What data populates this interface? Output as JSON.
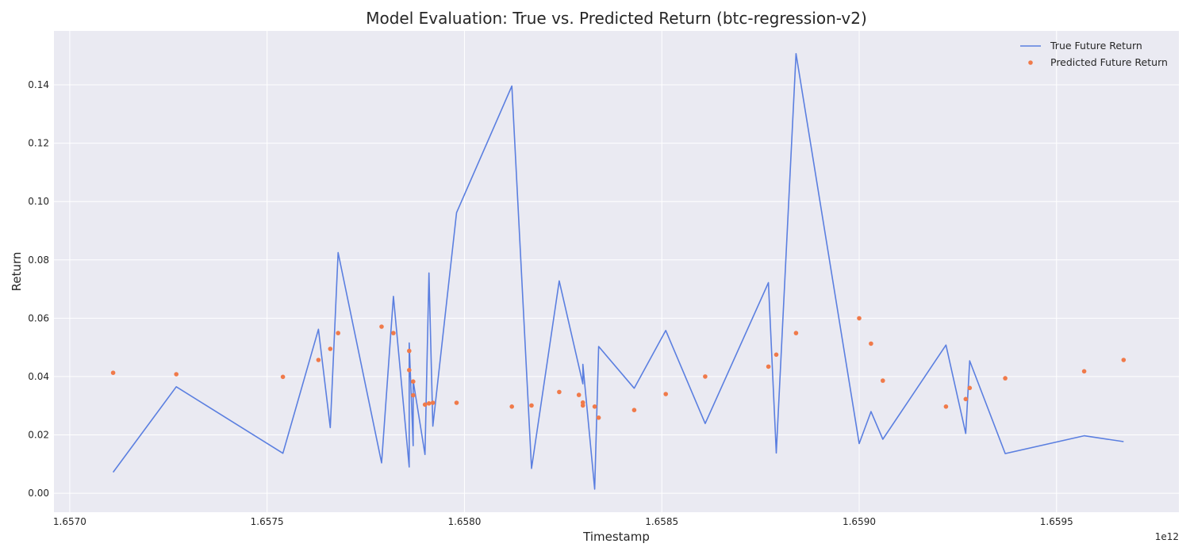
{
  "chart_data": {
    "type": "line",
    "title": "Model Evaluation: True vs. Predicted Return (btc-regression-v2)",
    "xlabel": "Timestamp",
    "ylabel": "Return",
    "x_offset_label": "1e12",
    "xlim": [
      1.65696,
      1.65598
    ],
    "ylim": [
      -0.0065,
      0.1585
    ],
    "x_ticks": [
      1.657,
      1.6575,
      1.658,
      1.6585,
      1.659,
      1.6595
    ],
    "x_tick_labels": [
      "1.6570",
      "1.6575",
      "1.6580",
      "1.6585",
      "1.6590",
      "1.6595"
    ],
    "y_ticks": [
      0.0,
      0.02,
      0.04,
      0.06,
      0.08,
      0.1,
      0.12,
      0.14
    ],
    "y_tick_labels": [
      "0.00",
      "0.02",
      "0.04",
      "0.06",
      "0.08",
      "0.10",
      "0.12",
      "0.14"
    ],
    "grid": true,
    "legend_position": "top-right",
    "series": [
      {
        "name": "True Future Return",
        "kind": "line",
        "color": "#5b7fe0",
        "x": [
          1.65711,
          1.65727,
          1.65754,
          1.65763,
          1.65766,
          1.65768,
          1.65779,
          1.65782,
          1.65786,
          1.65786,
          1.65787,
          1.65787,
          1.6579,
          1.65791,
          1.65792,
          1.65798,
          1.65812,
          1.65817,
          1.65824,
          1.6583,
          1.6583,
          1.65833,
          1.65834,
          1.65843,
          1.65851,
          1.65861,
          1.65877,
          1.65879,
          1.65884,
          1.659,
          1.65903,
          1.65906,
          1.65922,
          1.65927,
          1.65928,
          1.65937,
          1.65957,
          1.65967
        ],
        "y": [
          0.0072,
          0.0365,
          0.0137,
          0.0562,
          0.0225,
          0.0825,
          0.0104,
          0.0675,
          0.009,
          0.0515,
          0.0163,
          0.0386,
          0.0133,
          0.0755,
          0.023,
          0.0962,
          0.1396,
          0.0085,
          0.0728,
          0.0375,
          0.0442,
          0.0014,
          0.0503,
          0.036,
          0.0558,
          0.0239,
          0.0722,
          0.0138,
          0.1507,
          0.017,
          0.028,
          0.0185,
          0.0508,
          0.0205,
          0.0454,
          0.0136,
          0.0197,
          0.0177
        ]
      },
      {
        "name": "Predicted Future Return",
        "kind": "scatter",
        "color": "#f07a4a",
        "x": [
          1.65711,
          1.65727,
          1.65754,
          1.65763,
          1.65766,
          1.65768,
          1.65779,
          1.65782,
          1.65786,
          1.65786,
          1.65787,
          1.65787,
          1.6579,
          1.65791,
          1.65792,
          1.65798,
          1.65812,
          1.65817,
          1.65824,
          1.65829,
          1.6583,
          1.6583,
          1.65833,
          1.65834,
          1.65843,
          1.65851,
          1.65861,
          1.65877,
          1.65879,
          1.65884,
          1.659,
          1.65903,
          1.65906,
          1.65922,
          1.65927,
          1.65928,
          1.65937,
          1.65957,
          1.65967
        ],
        "y": [
          0.0413,
          0.0408,
          0.0399,
          0.0457,
          0.0495,
          0.0549,
          0.0571,
          0.0549,
          0.0488,
          0.0422,
          0.0383,
          0.0336,
          0.0304,
          0.0308,
          0.031,
          0.031,
          0.0297,
          0.0301,
          0.0347,
          0.0337,
          0.0311,
          0.0301,
          0.0297,
          0.0259,
          0.0285,
          0.034,
          0.04,
          0.0434,
          0.0475,
          0.0549,
          0.06,
          0.0513,
          0.0386,
          0.0297,
          0.0323,
          0.0361,
          0.0394,
          0.0418,
          0.0457
        ]
      }
    ]
  }
}
